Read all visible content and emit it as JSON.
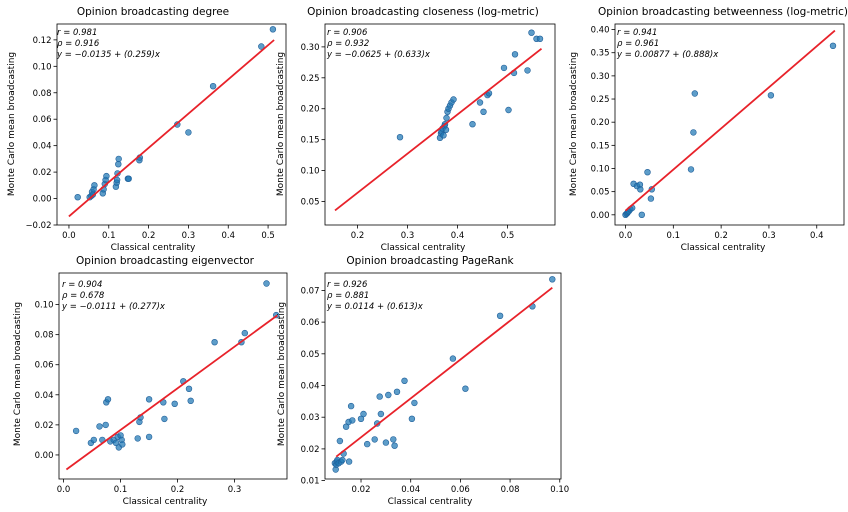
{
  "figure": {
    "background": "#ffffff"
  },
  "colors": {
    "point": "#1f77b4",
    "point_edge": "#1f5f9a",
    "fit_line": "#e8222a",
    "axis": "#000000"
  },
  "chart_data": [
    {
      "type": "scatter",
      "title": "Opinion broadcasting degree",
      "xlabel": "Classical centrality",
      "ylabel": "Monte Carlo mean broadcasting",
      "xlim": [
        -0.03,
        0.545
      ],
      "ylim": [
        -0.02,
        0.132
      ],
      "xticks": [
        0.0,
        0.1,
        0.2,
        0.3,
        0.4,
        0.5
      ],
      "xtick_labels": [
        "0.0",
        "0.1",
        "0.2",
        "0.3",
        "0.4",
        "0.5"
      ],
      "yticks": [
        -0.02,
        0.0,
        0.02,
        0.04,
        0.06,
        0.08,
        0.1,
        0.12
      ],
      "ytick_labels": [
        "−0.02",
        "0.00",
        "0.02",
        "0.04",
        "0.06",
        "0.08",
        "0.10",
        "0.12"
      ],
      "stats": [
        "r = 0.981",
        "ρ = 0.916",
        "y = −0.0135 + (0.259)x"
      ],
      "fit": {
        "intercept": -0.0135,
        "slope": 0.259,
        "x_range": [
          0.0,
          0.515
        ]
      },
      "points": [
        [
          0.022,
          0.001
        ],
        [
          0.052,
          0.001
        ],
        [
          0.056,
          0.002
        ],
        [
          0.058,
          0.005
        ],
        [
          0.06,
          0.003
        ],
        [
          0.062,
          0.007
        ],
        [
          0.064,
          0.01
        ],
        [
          0.085,
          0.004
        ],
        [
          0.087,
          0.007
        ],
        [
          0.09,
          0.011
        ],
        [
          0.092,
          0.014
        ],
        [
          0.094,
          0.017
        ],
        [
          0.118,
          0.009
        ],
        [
          0.12,
          0.012
        ],
        [
          0.121,
          0.014
        ],
        [
          0.122,
          0.019
        ],
        [
          0.124,
          0.026
        ],
        [
          0.125,
          0.03
        ],
        [
          0.148,
          0.015
        ],
        [
          0.15,
          0.015
        ],
        [
          0.177,
          0.029
        ],
        [
          0.178,
          0.031
        ],
        [
          0.272,
          0.056
        ],
        [
          0.3,
          0.05
        ],
        [
          0.362,
          0.085
        ],
        [
          0.483,
          0.115
        ],
        [
          0.512,
          0.128
        ]
      ]
    },
    {
      "type": "scatter",
      "title": "Opinion broadcasting closeness (log-metric)",
      "xlabel": "Classical centrality",
      "ylabel": "Monte Carlo mean broadcasting",
      "xlim": [
        0.135,
        0.595
      ],
      "ylim": [
        0.012,
        0.337
      ],
      "xticks": [
        0.2,
        0.3,
        0.4,
        0.5
      ],
      "xtick_labels": [
        "0.2",
        "0.3",
        "0.4",
        "0.5"
      ],
      "yticks": [
        0.05,
        0.1,
        0.15,
        0.2,
        0.25,
        0.3
      ],
      "ytick_labels": [
        "0.05",
        "0.10",
        "0.15",
        "0.20",
        "0.25",
        "0.30"
      ],
      "stats": [
        "r = 0.906",
        "ρ = 0.932",
        "y = −0.0625 + (0.633)x"
      ],
      "fit": {
        "intercept": -0.0625,
        "slope": 0.633,
        "x_range": [
          0.155,
          0.568
        ]
      },
      "points": [
        [
          0.285,
          0.154
        ],
        [
          0.365,
          0.153
        ],
        [
          0.367,
          0.16
        ],
        [
          0.368,
          0.163
        ],
        [
          0.37,
          0.168
        ],
        [
          0.372,
          0.157
        ],
        [
          0.374,
          0.172
        ],
        [
          0.375,
          0.175
        ],
        [
          0.377,
          0.166
        ],
        [
          0.378,
          0.185
        ],
        [
          0.38,
          0.195
        ],
        [
          0.382,
          0.2
        ],
        [
          0.385,
          0.205
        ],
        [
          0.388,
          0.21
        ],
        [
          0.392,
          0.215
        ],
        [
          0.43,
          0.175
        ],
        [
          0.445,
          0.21
        ],
        [
          0.452,
          0.195
        ],
        [
          0.46,
          0.222
        ],
        [
          0.463,
          0.225
        ],
        [
          0.493,
          0.266
        ],
        [
          0.502,
          0.198
        ],
        [
          0.513,
          0.258
        ],
        [
          0.515,
          0.288
        ],
        [
          0.54,
          0.262
        ],
        [
          0.548,
          0.323
        ],
        [
          0.558,
          0.313
        ],
        [
          0.565,
          0.313
        ]
      ]
    },
    {
      "type": "scatter",
      "title": "Opinion broadcasting betweenness (log-metric)",
      "xlabel": "Classical centrality",
      "ylabel": "Monte Carlo mean broadcasting",
      "xlim": [
        -0.022,
        0.457
      ],
      "ylim": [
        -0.022,
        0.412
      ],
      "xticks": [
        0.0,
        0.1,
        0.2,
        0.3,
        0.4
      ],
      "xtick_labels": [
        "0.0",
        "0.1",
        "0.2",
        "0.3",
        "0.4"
      ],
      "yticks": [
        0.0,
        0.05,
        0.1,
        0.15,
        0.2,
        0.25,
        0.3,
        0.35,
        0.4
      ],
      "ytick_labels": [
        "0.00",
        "0.05",
        "0.10",
        "0.15",
        "0.20",
        "0.25",
        "0.30",
        "0.35",
        "0.40"
      ],
      "stats": [
        "r = 0.941",
        "ρ = 0.961",
        "y = 0.00877 + (0.888)x"
      ],
      "fit": {
        "intercept": 0.00877,
        "slope": 0.888,
        "x_range": [
          0.0,
          0.438
        ]
      },
      "points": [
        [
          0.0,
          0.0
        ],
        [
          0.002,
          0.002
        ],
        [
          0.004,
          0.004
        ],
        [
          0.005,
          0.006
        ],
        [
          0.007,
          0.008
        ],
        [
          0.01,
          0.012
        ],
        [
          0.014,
          0.015
        ],
        [
          0.017,
          0.067
        ],
        [
          0.024,
          0.062
        ],
        [
          0.03,
          0.065
        ],
        [
          0.031,
          0.055
        ],
        [
          0.034,
          0.0
        ],
        [
          0.046,
          0.092
        ],
        [
          0.053,
          0.035
        ],
        [
          0.055,
          0.055
        ],
        [
          0.137,
          0.098
        ],
        [
          0.142,
          0.178
        ],
        [
          0.145,
          0.262
        ],
        [
          0.304,
          0.258
        ],
        [
          0.434,
          0.365
        ]
      ]
    },
    {
      "type": "scatter",
      "title": "Opinion broadcasting eigenvector",
      "xlabel": "Classical centrality",
      "ylabel": "Monte Carlo mean broadcasting",
      "xlim": [
        -0.008,
        0.392
      ],
      "ylim": [
        -0.016,
        0.121
      ],
      "xticks": [
        0.0,
        0.1,
        0.2,
        0.3
      ],
      "xtick_labels": [
        "0.0",
        "0.1",
        "0.2",
        "0.3"
      ],
      "yticks": [
        0.0,
        0.02,
        0.04,
        0.06,
        0.08,
        0.1
      ],
      "ytick_labels": [
        "0.00",
        "0.02",
        "0.04",
        "0.06",
        "0.08",
        "0.10"
      ],
      "stats": [
        "r = 0.904",
        "ρ = 0.678",
        "y = −0.0111 + (0.277)x"
      ],
      "fit": {
        "intercept": -0.0111,
        "slope": 0.277,
        "x_range": [
          0.005,
          0.375
        ]
      },
      "points": [
        [
          0.022,
          0.016
        ],
        [
          0.048,
          0.008
        ],
        [
          0.053,
          0.01
        ],
        [
          0.063,
          0.019
        ],
        [
          0.068,
          0.01
        ],
        [
          0.074,
          0.02
        ],
        [
          0.075,
          0.035
        ],
        [
          0.078,
          0.037
        ],
        [
          0.082,
          0.009
        ],
        [
          0.088,
          0.01
        ],
        [
          0.092,
          0.008
        ],
        [
          0.095,
          0.012
        ],
        [
          0.097,
          0.005
        ],
        [
          0.1,
          0.013
        ],
        [
          0.102,
          0.01
        ],
        [
          0.103,
          0.007
        ],
        [
          0.13,
          0.011
        ],
        [
          0.133,
          0.022
        ],
        [
          0.135,
          0.025
        ],
        [
          0.15,
          0.012
        ],
        [
          0.15,
          0.037
        ],
        [
          0.175,
          0.035
        ],
        [
          0.177,
          0.024
        ],
        [
          0.195,
          0.034
        ],
        [
          0.21,
          0.049
        ],
        [
          0.22,
          0.044
        ],
        [
          0.223,
          0.036
        ],
        [
          0.265,
          0.075
        ],
        [
          0.312,
          0.075
        ],
        [
          0.318,
          0.081
        ],
        [
          0.356,
          0.114
        ],
        [
          0.373,
          0.093
        ]
      ]
    },
    {
      "type": "scatter",
      "title": "Opinion broadcasting PageRank",
      "xlabel": "Classical centrality",
      "ylabel": "Monte Carlo mean broadcasting",
      "xlim": [
        0.0055,
        0.1005
      ],
      "ylim": [
        0.0105,
        0.0755
      ],
      "xticks": [
        0.02,
        0.04,
        0.06,
        0.08,
        0.1
      ],
      "xtick_labels": [
        "0.02",
        "0.04",
        "0.06",
        "0.08",
        "0.10"
      ],
      "yticks": [
        0.01,
        0.02,
        0.03,
        0.04,
        0.05,
        0.06,
        0.07
      ],
      "ytick_labels": [
        "0.01",
        "0.02",
        "0.03",
        "0.04",
        "0.05",
        "0.06",
        "0.07"
      ],
      "stats": [
        "r = 0.926",
        "ρ = 0.881",
        "y = 0.0114 + (0.613)x"
      ],
      "fit": {
        "intercept": 0.0114,
        "slope": 0.613,
        "x_range": [
          0.01,
          0.097
        ]
      },
      "points": [
        [
          0.0095,
          0.0155
        ],
        [
          0.0098,
          0.0135
        ],
        [
          0.01,
          0.015
        ],
        [
          0.0102,
          0.016
        ],
        [
          0.0105,
          0.0165
        ],
        [
          0.011,
          0.0155
        ],
        [
          0.0115,
          0.0225
        ],
        [
          0.012,
          0.016
        ],
        [
          0.0125,
          0.0165
        ],
        [
          0.013,
          0.0185
        ],
        [
          0.014,
          0.027
        ],
        [
          0.015,
          0.0285
        ],
        [
          0.0152,
          0.016
        ],
        [
          0.016,
          0.0335
        ],
        [
          0.0165,
          0.029
        ],
        [
          0.02,
          0.0295
        ],
        [
          0.021,
          0.031
        ],
        [
          0.0225,
          0.0215
        ],
        [
          0.0255,
          0.023
        ],
        [
          0.0265,
          0.028
        ],
        [
          0.0275,
          0.0365
        ],
        [
          0.028,
          0.031
        ],
        [
          0.03,
          0.022
        ],
        [
          0.031,
          0.037
        ],
        [
          0.033,
          0.023
        ],
        [
          0.0335,
          0.021
        ],
        [
          0.0345,
          0.038
        ],
        [
          0.0375,
          0.0415
        ],
        [
          0.0405,
          0.0295
        ],
        [
          0.0415,
          0.0345
        ],
        [
          0.057,
          0.0485
        ],
        [
          0.062,
          0.039
        ],
        [
          0.076,
          0.062
        ],
        [
          0.089,
          0.065
        ],
        [
          0.097,
          0.0735
        ]
      ]
    }
  ]
}
